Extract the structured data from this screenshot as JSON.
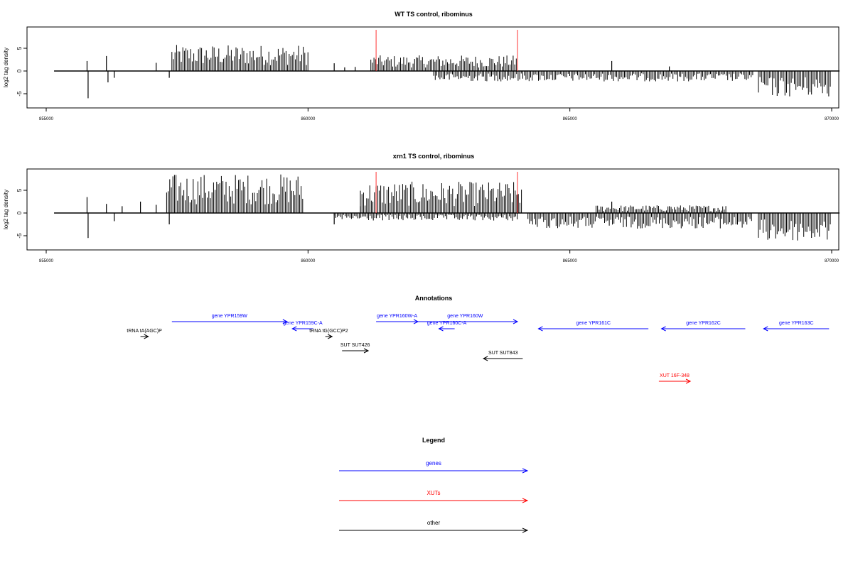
{
  "chart_data": [
    {
      "type": "bar",
      "title": "WT TS control, ribominus",
      "ylabel": "log2 tag density",
      "xlim": [
        855000,
        870000
      ],
      "ylim": [
        -7,
        9
      ],
      "x_ticks": [
        855000,
        860000,
        865000,
        870000
      ],
      "x_tick_labels": [
        "855000",
        "860000",
        "865000",
        "870000"
      ],
      "y_ticks": [
        -5,
        0,
        5
      ],
      "y_tick_labels": [
        "-5",
        "0",
        "5"
      ],
      "region_markers": [
        861300,
        864000
      ],
      "marker_color": "#ff3333",
      "bar_color": "#000000",
      "density_profile": {
        "plus_strand": [
          {
            "from": 857400,
            "to": 860000,
            "level": 5
          },
          {
            "from": 861200,
            "to": 864000,
            "level": 3
          }
        ],
        "minus_strand": [
          {
            "from": 862400,
            "to": 868500,
            "level": -2
          },
          {
            "from": 868600,
            "to": 870000,
            "level": -5
          }
        ],
        "spikes": [
          {
            "x": 855780,
            "value": 2.2
          },
          {
            "x": 855800,
            "value": -6
          },
          {
            "x": 856150,
            "value": 3.3
          },
          {
            "x": 856180,
            "value": -2.5
          },
          {
            "x": 856300,
            "value": -1.5
          },
          {
            "x": 857100,
            "value": 1.8
          },
          {
            "x": 857350,
            "value": -1.5
          },
          {
            "x": 860500,
            "value": 1.7
          },
          {
            "x": 860700,
            "value": 0.8
          },
          {
            "x": 860900,
            "value": 0.9
          },
          {
            "x": 865800,
            "value": 2.2
          },
          {
            "x": 866900,
            "value": 1.0
          }
        ]
      }
    },
    {
      "type": "bar",
      "title": "xrn1 TS control, ribominus",
      "ylabel": "log2 tag density",
      "xlim": [
        855000,
        870000
      ],
      "ylim": [
        -7,
        9
      ],
      "x_ticks": [
        855000,
        860000,
        865000,
        870000
      ],
      "x_tick_labels": [
        "855000",
        "860000",
        "865000",
        "870000"
      ],
      "y_ticks": [
        -5,
        0,
        5
      ],
      "y_tick_labels": [
        "-5",
        "0",
        "5"
      ],
      "region_markers": [
        861300,
        864000
      ],
      "marker_color": "#ff3333",
      "bar_color": "#000000",
      "density_profile": {
        "plus_strand": [
          {
            "from": 857300,
            "to": 859900,
            "level": 7.5
          },
          {
            "from": 861000,
            "to": 864100,
            "level": 6
          },
          {
            "from": 865500,
            "to": 868000,
            "level": 1.5
          }
        ],
        "minus_strand": [
          {
            "from": 860500,
            "to": 864000,
            "level": -1.5
          },
          {
            "from": 864200,
            "to": 868500,
            "level": -3
          },
          {
            "from": 868600,
            "to": 870000,
            "level": -5.5
          }
        ],
        "spikes": [
          {
            "x": 855780,
            "value": 3.5
          },
          {
            "x": 855800,
            "value": -5.5
          },
          {
            "x": 856150,
            "value": 2.0
          },
          {
            "x": 856300,
            "value": -1.8
          },
          {
            "x": 856450,
            "value": 1.5
          },
          {
            "x": 856800,
            "value": 2.5
          },
          {
            "x": 857100,
            "value": 1.8
          },
          {
            "x": 857350,
            "value": -2.5
          },
          {
            "x": 860500,
            "value": -2.5
          },
          {
            "x": 861000,
            "value": 1.5
          },
          {
            "x": 865800,
            "value": 2.5
          },
          {
            "x": 866900,
            "value": 1.5
          }
        ]
      }
    }
  ],
  "annotations": {
    "title": "Annotations",
    "xlim": [
      855000,
      870000
    ],
    "features": [
      {
        "label": "gene YPR159W",
        "category": "genes",
        "start": 857400,
        "end": 859600,
        "strand": "+",
        "track": 0
      },
      {
        "label": "gene YPR160W-A",
        "category": "genes",
        "start": 861300,
        "end": 862100,
        "strand": "+",
        "track": 0
      },
      {
        "label": "gene YPR160W",
        "category": "genes",
        "start": 862000,
        "end": 864000,
        "strand": "+",
        "track": 0
      },
      {
        "label": "gene YPR159C-A",
        "category": "genes",
        "start": 859700,
        "end": 860100,
        "strand": "-",
        "track": 1
      },
      {
        "label": "gene YPR160C-A",
        "category": "genes",
        "start": 862500,
        "end": 862800,
        "strand": "-",
        "track": 1
      },
      {
        "label": "gene YPR161C",
        "category": "genes",
        "start": 864400,
        "end": 866500,
        "strand": "-",
        "track": 1
      },
      {
        "label": "gene YPR162C",
        "category": "genes",
        "start": 866750,
        "end": 868350,
        "strand": "-",
        "track": 1
      },
      {
        "label": "gene YPR163C",
        "category": "genes",
        "start": 868700,
        "end": 869950,
        "strand": "-",
        "track": 1
      },
      {
        "label": "tRNA tA(AGC)P",
        "category": "other",
        "start": 856800,
        "end": 856950,
        "strand": "+",
        "track": 2
      },
      {
        "label": "tRNA tG(GCC)P2",
        "category": "other",
        "start": 860330,
        "end": 860460,
        "strand": "+",
        "track": 2
      },
      {
        "label": "SUT SUT426",
        "category": "other",
        "start": 860650,
        "end": 861150,
        "strand": "+",
        "track": 3
      },
      {
        "label": "SUT SUT843",
        "category": "other",
        "start": 863350,
        "end": 864100,
        "strand": "-",
        "track": 4
      },
      {
        "label": "XUT 16F-348",
        "category": "XUTs",
        "start": 866700,
        "end": 867300,
        "strand": "+",
        "track": 5
      }
    ]
  },
  "legend": {
    "title": "Legend",
    "items": [
      {
        "label": "genes",
        "color": "#0000ff"
      },
      {
        "label": "XUTs",
        "color": "#ff0000"
      },
      {
        "label": "other",
        "color": "#000000"
      }
    ]
  },
  "colors": {
    "genes": "#0000ff",
    "XUTs": "#ff0000",
    "other": "#000000"
  }
}
